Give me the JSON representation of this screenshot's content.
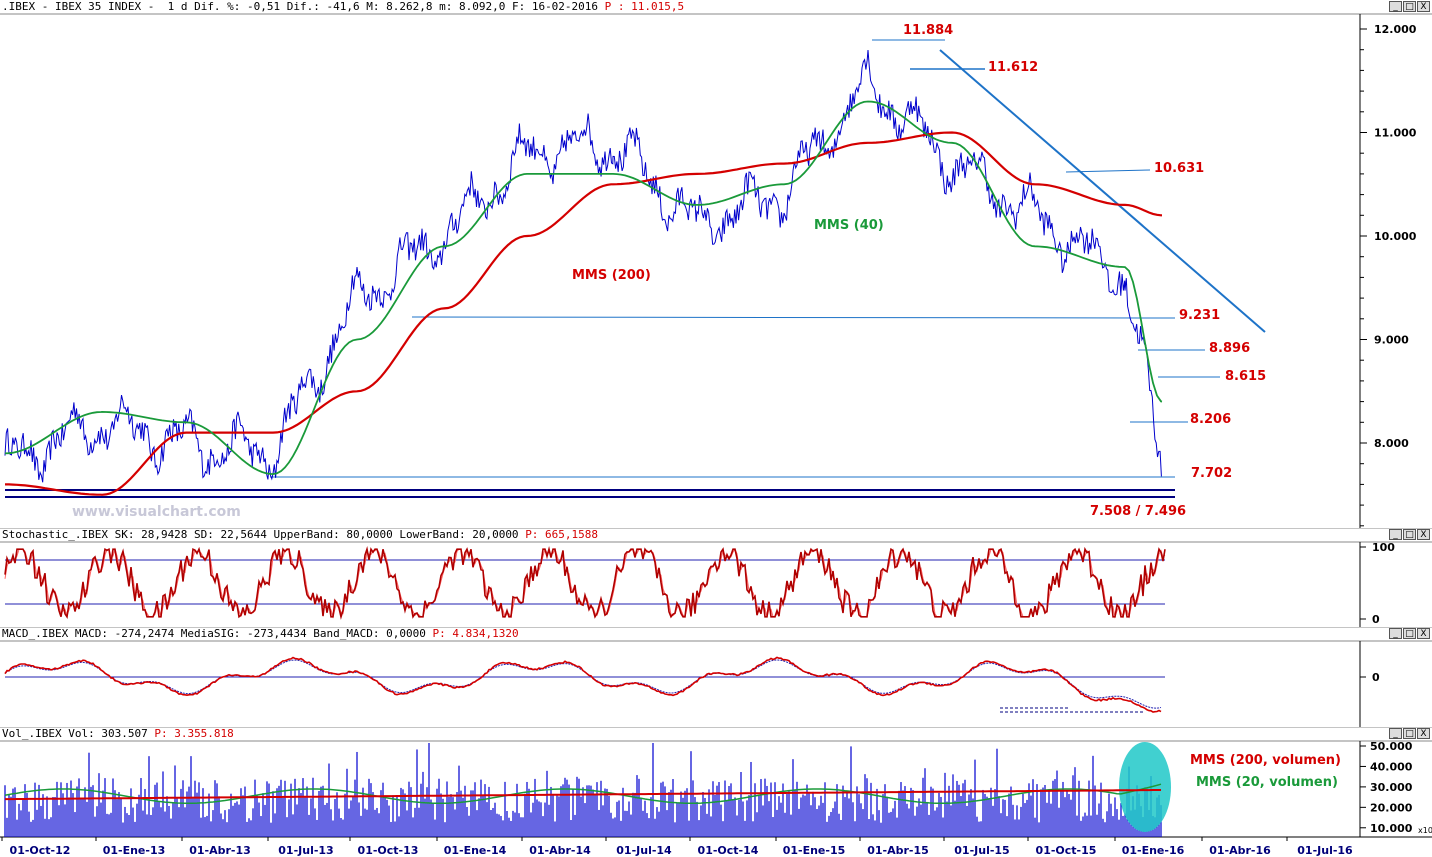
{
  "price_panel": {
    "header": {
      "symbol": ".IBEX - IBEX 35 INDEX -",
      "rest": "1 d Dif. %: -0,51 Dif.: -41,6 M: 8.262,8 m: 8.092,0 F: 16-02-2016 ",
      "p": "P : 11.015,5"
    },
    "y_ticks": [
      "12.000",
      "11.000",
      "10.000",
      "9.000",
      "8.000"
    ],
    "watermark": "www.visualchart.com",
    "annotations": {
      "mms200": "MMS (200)",
      "mms40": "MMS (40)"
    },
    "levels": [
      "11.884",
      "11.612",
      "10.631",
      "9.231",
      "8.896",
      "8.615",
      "8.206",
      "7.702",
      "7.508 / 7.496"
    ],
    "colors": {
      "price": "#0000cc",
      "mms40": "#1a9a3a",
      "mms200": "#d40000",
      "trend": "#1e73c8"
    }
  },
  "stoch_panel": {
    "header": {
      "text": "Stochastic_.IBEX SK: 28,9428 SD: 22,5644 UpperBand: 80,0000 LowerBand: 20,0000 ",
      "p": "P: 665,1588"
    },
    "y_ticks": [
      "100",
      "0"
    ]
  },
  "macd_panel": {
    "header": {
      "text": "MACD_.IBEX MACD: -274,2474 MediaSIG: -273,4434 Band_MACD: 0,0000 ",
      "p": "P: 4.834,1320"
    },
    "y_ticks": [
      "0"
    ]
  },
  "vol_panel": {
    "header": {
      "text": "Vol_.IBEX Vol: 303.507 ",
      "p": "P: 3.355.818"
    },
    "y_ticks": [
      "50.000",
      "40.000",
      "30.000",
      "20.000",
      "10.000"
    ],
    "scale_note": "x10",
    "legend": {
      "mms200": "MMS (200, volumen)",
      "mms20": "MMS (20, volumen)"
    }
  },
  "window_buttons": [
    "_",
    "□",
    "X"
  ],
  "x_axis": [
    "01-Oct-12",
    "01-Ene-13",
    "01-Abr-13",
    "01-Jul-13",
    "01-Oct-13",
    "01-Ene-14",
    "01-Abr-14",
    "01-Jul-14",
    "01-Oct-14",
    "01-Ene-15",
    "01-Abr-15",
    "01-Jul-15",
    "01-Oct-15",
    "01-Ene-16",
    "01-Abr-16",
    "01-Jul-16"
  ],
  "chart_data": {
    "type": "line",
    "title": ".IBEX - IBEX 35 INDEX",
    "x": [
      "01-Oct-12",
      "01-Ene-13",
      "01-Abr-13",
      "01-Jul-13",
      "01-Oct-13",
      "01-Ene-14",
      "01-Abr-14",
      "01-Jul-14",
      "01-Oct-14",
      "01-Ene-15",
      "01-Abr-15",
      "01-Jul-15",
      "01-Oct-15",
      "01-Ene-16",
      "16-02-2016"
    ],
    "ylim": [
      7300,
      12200
    ],
    "series": [
      {
        "name": "IBEX",
        "values": [
          7800,
          8200,
          8000,
          7900,
          9400,
          10000,
          10800,
          10900,
          10100,
          10400,
          11500,
          10700,
          10200,
          9600,
          7800
        ]
      },
      {
        "name": "MMS (40)",
        "values": [
          7900,
          8300,
          8200,
          7700,
          9000,
          9900,
          10600,
          10600,
          10300,
          10500,
          11300,
          10900,
          9900,
          9700,
          8400
        ]
      },
      {
        "name": "MMS (200)",
        "values": [
          7600,
          7500,
          8100,
          8100,
          8500,
          9300,
          10000,
          10500,
          10600,
          10700,
          10900,
          11000,
          10500,
          10300,
          10200
        ]
      }
    ],
    "levels": [
      11884,
      11612,
      10631,
      9231,
      8896,
      8615,
      8206,
      7702,
      7508,
      7496
    ]
  }
}
